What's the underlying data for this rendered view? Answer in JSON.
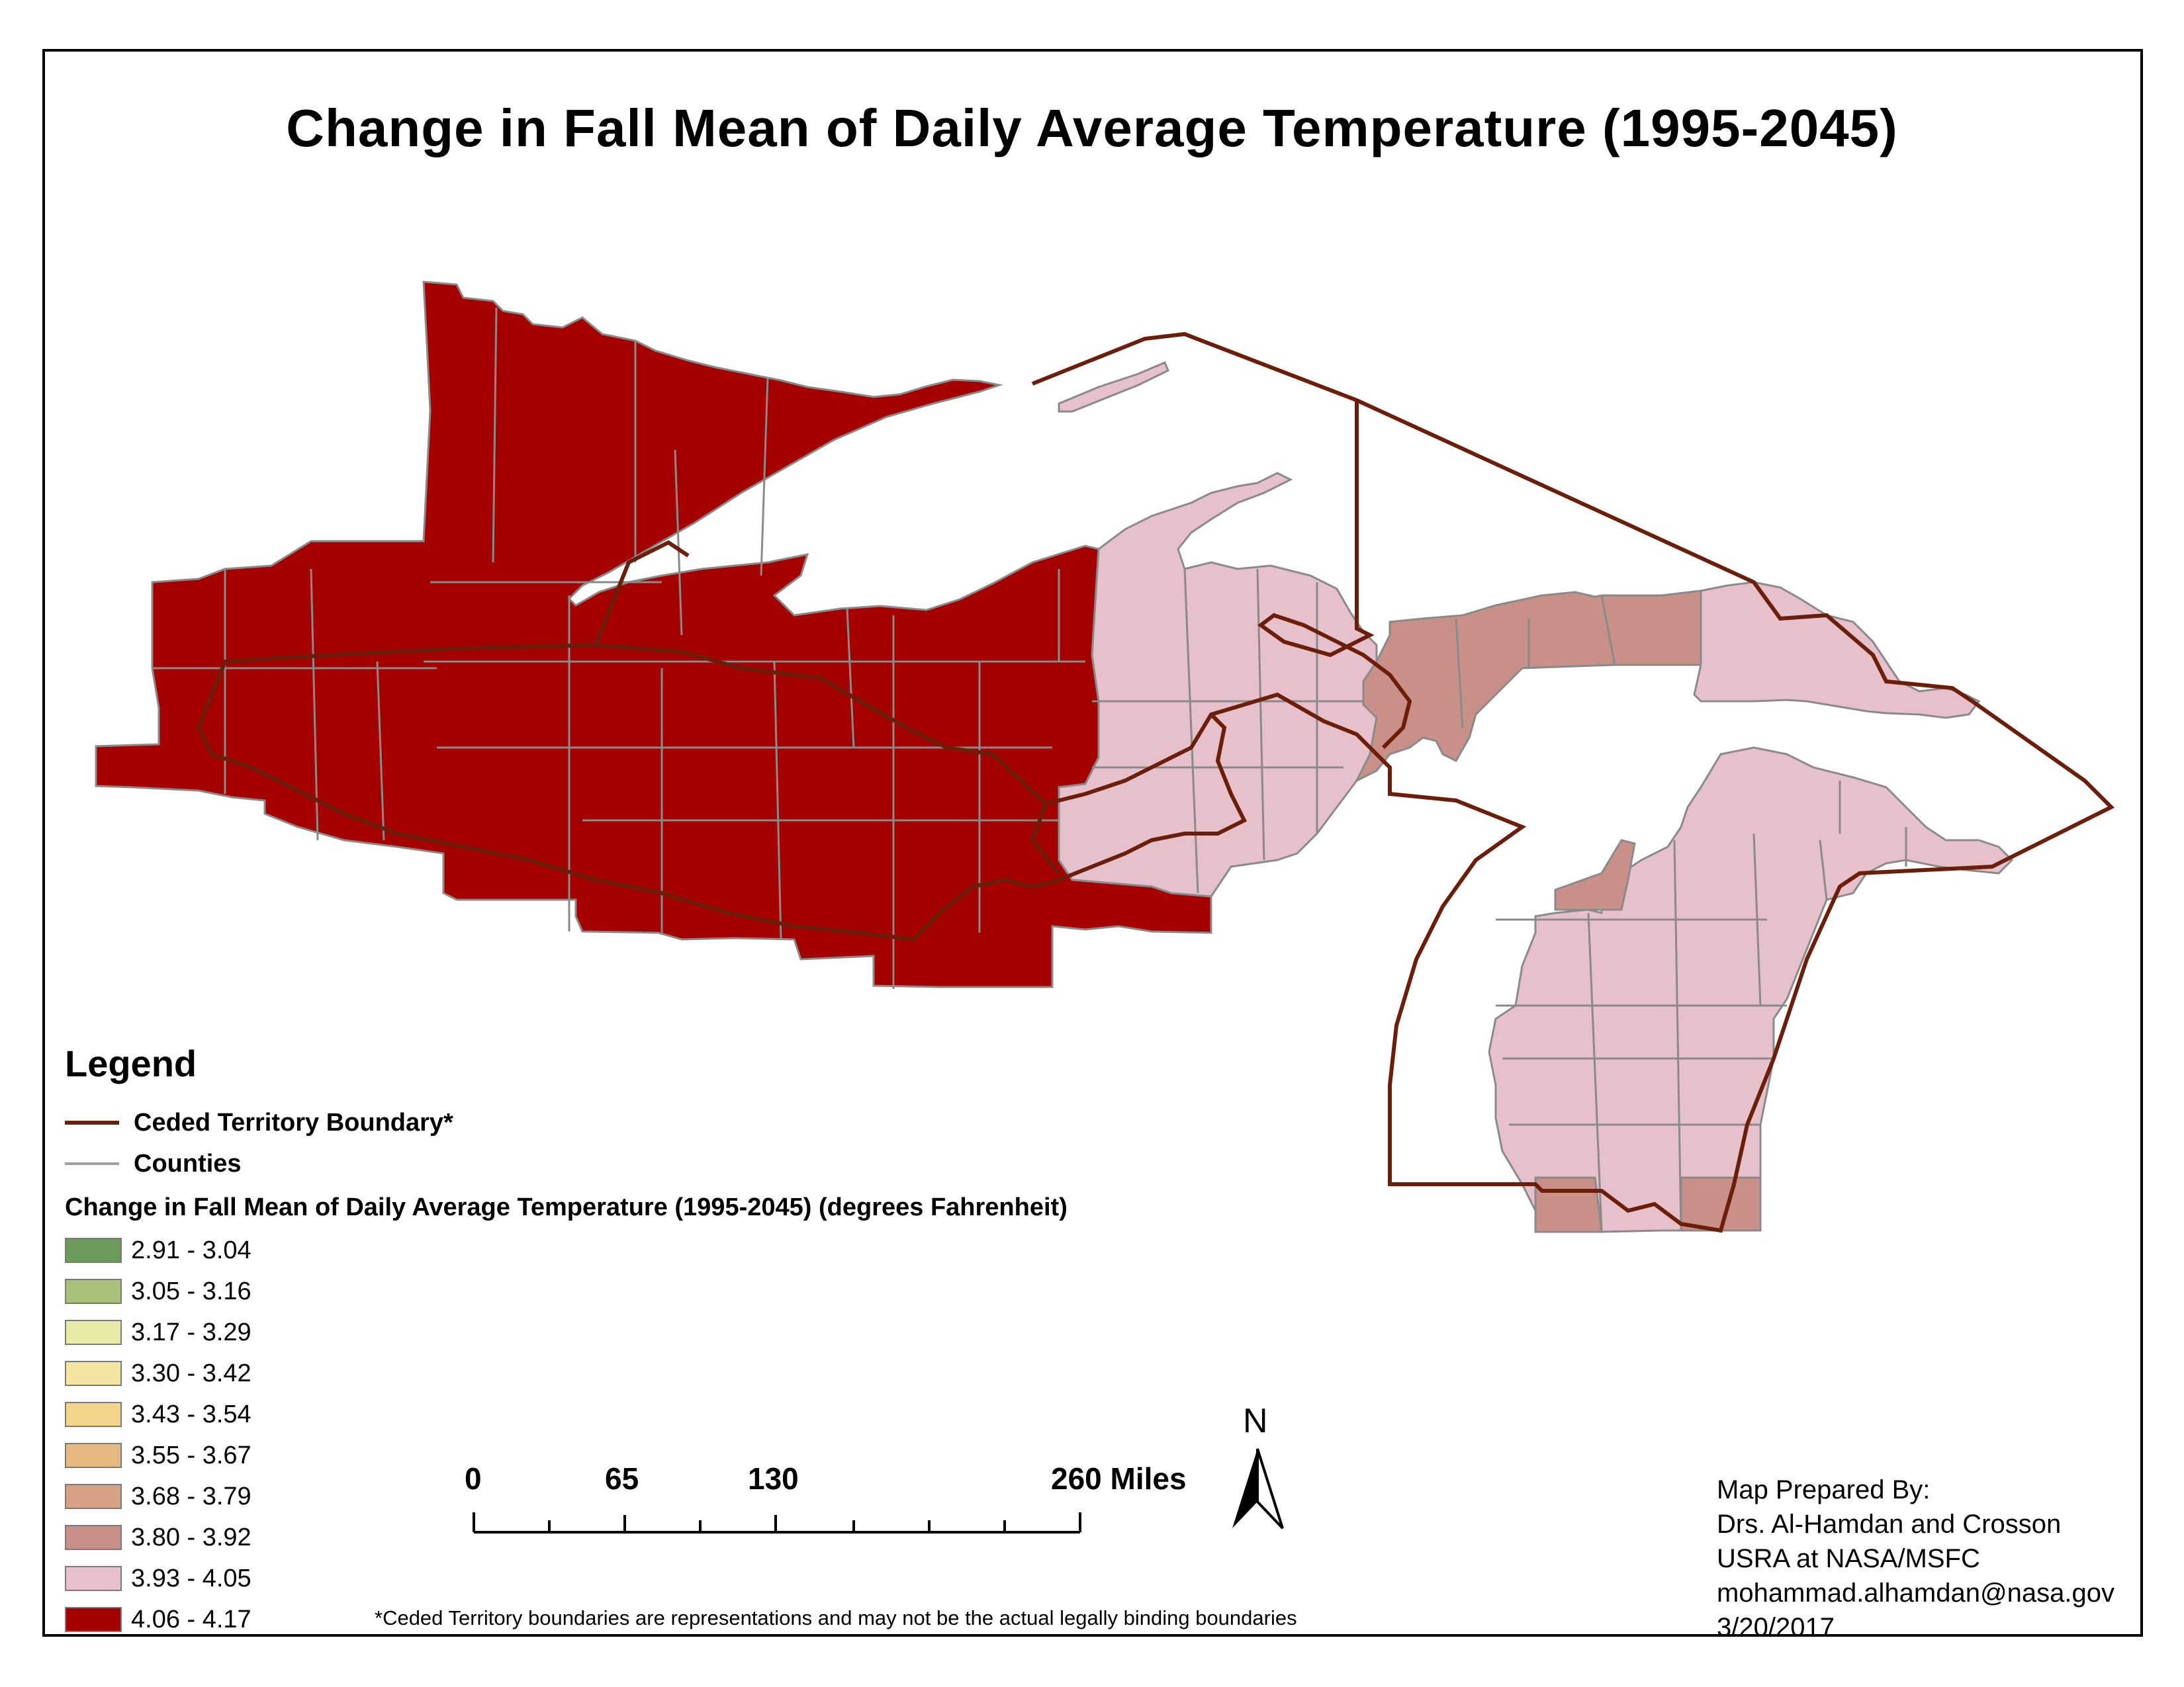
{
  "title": "Change in Fall Mean of Daily Average Temperature (1995-2045)",
  "legend": {
    "heading": "Legend",
    "boundary_label": "Ceded Territory Boundary*",
    "counties_label": "Counties",
    "field_label": "Change in Fall Mean of Daily Average Temperature (1995-2045) (degrees Fahrenheit)",
    "bins": [
      {
        "label": "2.91 - 3.04",
        "color": "#6b9a5a"
      },
      {
        "label": "3.05 - 3.16",
        "color": "#a9c07a"
      },
      {
        "label": "3.17 - 3.29",
        "color": "#e8eaa6"
      },
      {
        "label": "3.30 - 3.42",
        "color": "#f4e6a0"
      },
      {
        "label": "3.43 - 3.54",
        "color": "#f2d48a"
      },
      {
        "label": "3.55 - 3.67",
        "color": "#e6b882"
      },
      {
        "label": "3.68 - 3.79",
        "color": "#d6a283"
      },
      {
        "label": "3.80 - 3.92",
        "color": "#c99089"
      },
      {
        "label": "3.93 - 4.05",
        "color": "#e6c1cb"
      },
      {
        "label": "4.06 - 4.17",
        "color": "#a50000"
      }
    ]
  },
  "colors": {
    "boundary": "#6b1f0a",
    "counties": "#8a8a8a",
    "high": "#a50000",
    "mid": "#c99089",
    "low": "#e6c1cb"
  },
  "scale_bar": {
    "labels": [
      "0",
      "65",
      "130",
      "260 Miles"
    ]
  },
  "north_arrow": "N",
  "credits": [
    "Map Prepared By:",
    "Drs. Al-Hamdan and Crosson",
    "USRA at NASA/MSFC",
    "mohammad.alhamdan@nasa.gov",
    "3/20/2017"
  ],
  "footnote": "*Ceded Territory boundaries are representations and may not be the actual legally binding boundaries"
}
